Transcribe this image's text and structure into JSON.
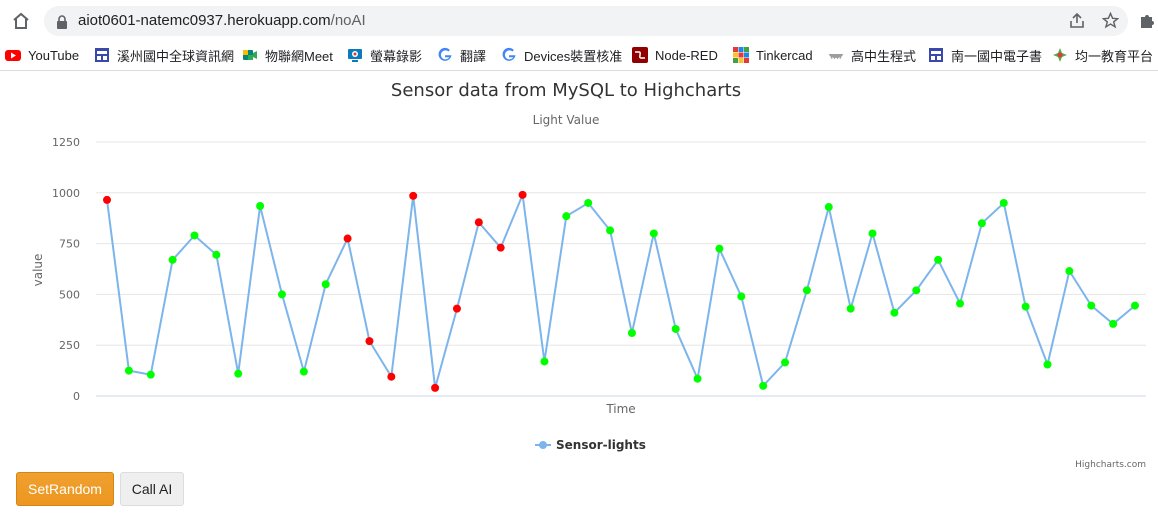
{
  "browser": {
    "url_host": "aiot0601-natemc0937.herokuapp.com",
    "url_path": "/noAI",
    "bookmarks": [
      {
        "label": "YouTube",
        "icon": "youtube-icon"
      },
      {
        "label": "溪州國中全球資訊網",
        "icon": "site-icon"
      },
      {
        "label": "物聯網Meet",
        "icon": "meet-icon"
      },
      {
        "label": "螢幕錄影",
        "icon": "screen-record-icon"
      },
      {
        "label": "翻譯",
        "icon": "google-icon"
      },
      {
        "label": "Devices裝置核准",
        "icon": "google-icon"
      },
      {
        "label": "Node-RED",
        "icon": "node-red-icon"
      },
      {
        "label": "Tinkercad",
        "icon": "tinkercad-icon"
      },
      {
        "label": "高中生程式",
        "icon": "cloud-icon"
      },
      {
        "label": "南一國中電子書",
        "icon": "site-icon"
      },
      {
        "label": "均一教育平台",
        "icon": "junyi-icon"
      }
    ]
  },
  "chart_data": {
    "type": "line",
    "title": "Sensor data from MySQL to Highcharts",
    "subtitle": "Light Value",
    "xlabel": "Time",
    "ylabel": "value",
    "ylim": [
      0,
      1250
    ],
    "yticks": [
      "0",
      "250",
      "500",
      "750",
      "1000",
      "1250"
    ],
    "grid": true,
    "legend_position": "bottom-center",
    "credit": "Highcharts.com",
    "line_color": "#7cb5ec",
    "high_color": "#ff0000",
    "normal_color": "#00ff00",
    "series": [
      {
        "name": "Sensor-lights",
        "values": [
          965,
          125,
          105,
          670,
          790,
          695,
          110,
          935,
          500,
          120,
          550,
          775,
          270,
          95,
          985,
          40,
          430,
          855,
          730,
          990,
          170,
          885,
          950,
          815,
          310,
          800,
          330,
          85,
          725,
          490,
          50,
          165,
          520,
          930,
          430,
          800,
          410,
          520,
          670,
          455,
          850,
          950,
          440,
          155,
          615,
          445,
          355,
          445
        ],
        "marker_colors": [
          "r",
          "g",
          "g",
          "g",
          "g",
          "g",
          "g",
          "g",
          "g",
          "g",
          "g",
          "r",
          "r",
          "r",
          "r",
          "r",
          "r",
          "r",
          "r",
          "r",
          "g",
          "g",
          "g",
          "g",
          "g",
          "g",
          "g",
          "g",
          "g",
          "g",
          "g",
          "g",
          "g",
          "g",
          "g",
          "g",
          "g",
          "g",
          "g",
          "g",
          "g",
          "g",
          "g",
          "g",
          "g",
          "g",
          "g",
          "g"
        ]
      }
    ]
  },
  "buttons": {
    "set_random": "SetRandom",
    "call_ai": "Call AI"
  }
}
